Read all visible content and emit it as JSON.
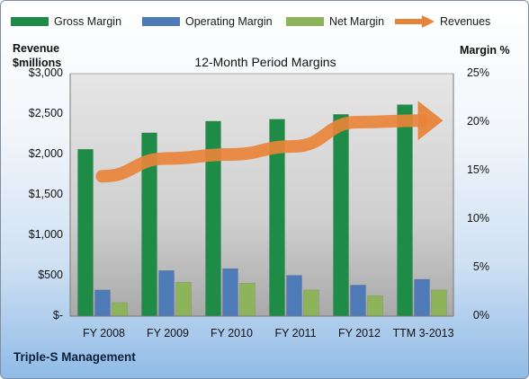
{
  "chart_data": {
    "type": "bar",
    "title": "12-Month Period Margins",
    "categories": [
      "FY 2008",
      "FY 2009",
      "FY 2010",
      "FY 2011",
      "FY 2012",
      "TTM 3-2013"
    ],
    "series": [
      {
        "name": "Gross Margin",
        "axis": "right",
        "color": "#1e8b46",
        "values": [
          17.2,
          18.9,
          20.1,
          20.3,
          20.8,
          21.8
        ]
      },
      {
        "name": "Operating Margin",
        "axis": "right",
        "color": "#4f7ab8",
        "values": [
          2.7,
          4.7,
          4.9,
          4.2,
          3.2,
          3.8
        ]
      },
      {
        "name": "Net Margin",
        "axis": "right",
        "color": "#8db35b",
        "values": [
          1.4,
          3.5,
          3.4,
          2.7,
          2.1,
          2.7
        ]
      },
      {
        "name": "Revenues",
        "axis": "left",
        "type": "line",
        "color": "#e8843a",
        "values": [
          1730,
          1950,
          2000,
          2100,
          2400,
          2420
        ]
      }
    ],
    "left_axis": {
      "title": [
        "Revenue",
        "$millions"
      ],
      "ylim": [
        0,
        3000
      ],
      "ticks": [
        0,
        500,
        1000,
        1500,
        2000,
        2500,
        3000
      ],
      "tick_labels": [
        "$-",
        "$500",
        "$1,000",
        "$1,500",
        "$2,000",
        "$2,500",
        "$3,000"
      ]
    },
    "right_axis": {
      "title": "Margin %",
      "ylim": [
        0,
        25
      ],
      "ticks": [
        0,
        5,
        10,
        15,
        20,
        25
      ],
      "tick_labels": [
        "0%",
        "5%",
        "10%",
        "15%",
        "20%",
        "25%"
      ]
    },
    "legend_position": "top",
    "grid": false
  },
  "footer": {
    "company": "Triple-S Management"
  }
}
